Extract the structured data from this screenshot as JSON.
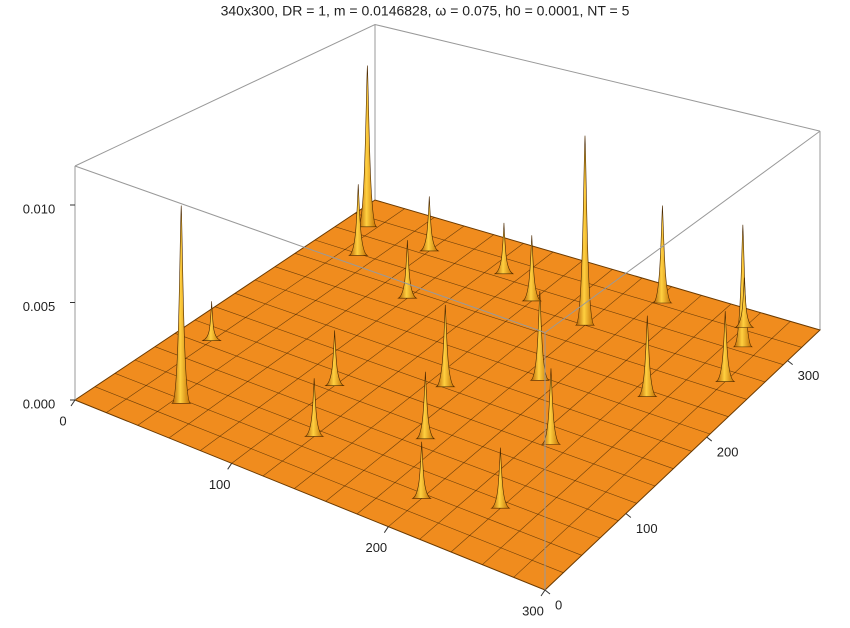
{
  "chart_data": {
    "type": "surface3d",
    "title": "340x300, DR = 1,  m = 0.0146828, ω = 0.075, h0 = 0.0001, NT = 5",
    "color": "#f08c1e",
    "xlim": [
      0,
      300
    ],
    "xticks": [
      0,
      100,
      200,
      300
    ],
    "ylim": [
      0,
      340
    ],
    "yticks": [
      0,
      100,
      200,
      300
    ],
    "zlim": [
      0,
      0.012
    ],
    "zticks": [
      {
        "value": 0,
        "label": "0.000"
      },
      {
        "value": 0.005,
        "label": "0.005"
      },
      {
        "value": 0.01,
        "label": "0.010"
      }
    ],
    "peaks": {
      "x": [
        15,
        60,
        110,
        30,
        140,
        205,
        80,
        180,
        190,
        270,
        250,
        280,
        260,
        150,
        120,
        20,
        170,
        100,
        200,
        230,
        240,
        45
      ],
      "y": [
        306,
        300,
        300,
        270,
        280,
        320,
        240,
        272,
        200,
        300,
        220,
        260,
        320,
        160,
        60,
        120,
        100,
        120,
        40,
        140,
        60,
        41
      ],
      "z": [
        0.0106,
        0.0035,
        0.0032,
        0.0045,
        0.004,
        0.006,
        0.0035,
        0.0113,
        0.005,
        0.0072,
        0.0045,
        0.004,
        0.003,
        0.0045,
        0.003,
        0.0022,
        0.0035,
        0.003,
        0.0028,
        0.004,
        0.003,
        0.0103
      ]
    }
  }
}
